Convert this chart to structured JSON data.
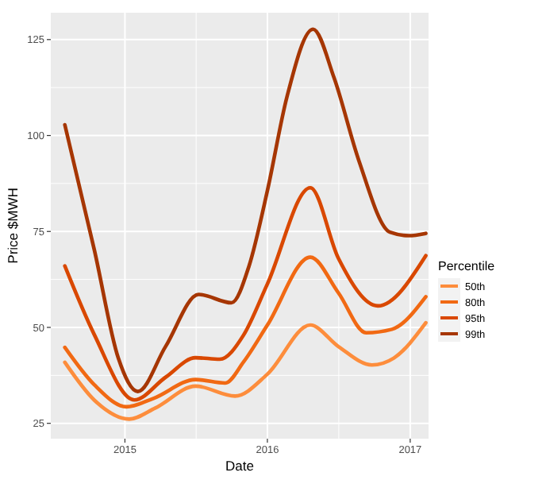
{
  "chart_data": {
    "type": "line",
    "xlabel": "Date",
    "ylabel": "Price $MWH",
    "legend_title": "Percentile",
    "legend": "right",
    "grid": true,
    "line_style": "solid",
    "xlim": [
      "2014-06-25",
      "2017-02-17"
    ],
    "xticks": [
      {
        "value": "2015-01-01",
        "label": "2015"
      },
      {
        "value": "2016-01-01",
        "label": "2016"
      },
      {
        "value": "2017-01-01",
        "label": "2017"
      }
    ],
    "ylim": [
      21,
      132
    ],
    "yticks": [
      25,
      50,
      75,
      100,
      125
    ],
    "series": [
      {
        "name": "50th",
        "color": "#fd8d3c",
        "x": [
          "2014-07-31",
          "2014-10-15",
          "2015-01-12",
          "2015-03-20",
          "2015-07-01",
          "2015-10-10",
          "2016-01-01",
          "2016-04-20",
          "2016-07-01",
          "2016-09-25",
          "2016-11-20",
          "2017-02-10"
        ],
        "values": [
          40.9,
          31,
          26.1,
          29,
          34.7,
          32.1,
          37.8,
          50.6,
          45,
          40.2,
          42,
          51.2
        ]
      },
      {
        "name": "80th",
        "color": "#f16913",
        "x": [
          "2014-07-31",
          "2014-10-15",
          "2015-01-05",
          "2015-03-15",
          "2015-07-01",
          "2015-09-15",
          "2015-11-01",
          "2016-01-01",
          "2016-04-20",
          "2016-07-01",
          "2016-09-10",
          "2016-11-15",
          "2017-02-10"
        ],
        "values": [
          44.8,
          35,
          29.3,
          31.5,
          36.4,
          35.5,
          41,
          50.6,
          68.3,
          59,
          48.6,
          49.5,
          58
        ]
      },
      {
        "name": "95th",
        "color": "#d94801",
        "x": [
          "2014-07-31",
          "2014-10-15",
          "2015-01-25",
          "2015-04-15",
          "2015-07-01",
          "2015-09-01",
          "2015-11-01",
          "2016-01-01",
          "2016-04-20",
          "2016-07-01",
          "2016-10-10",
          "2017-02-10"
        ],
        "values": [
          66,
          48,
          31.1,
          37,
          42.1,
          41.7,
          48,
          61.3,
          86.4,
          68,
          55.6,
          68.7
        ]
      },
      {
        "name": "99th",
        "color": "#a63603",
        "x": [
          "2014-07-31",
          "2014-10-15",
          "2014-12-15",
          "2015-02-03",
          "2015-04-15",
          "2015-07-09",
          "2015-10-01",
          "2015-11-15",
          "2016-01-01",
          "2016-02-20",
          "2016-04-27",
          "2016-06-20",
          "2016-08-22",
          "2016-11-10",
          "2016-12-28",
          "2017-02-10"
        ],
        "values": [
          102.8,
          70,
          42,
          33.3,
          45,
          58.6,
          56.4,
          66,
          85.6,
          110,
          127.7,
          115,
          93.6,
          74.8,
          73.9,
          74.5
        ]
      }
    ]
  }
}
